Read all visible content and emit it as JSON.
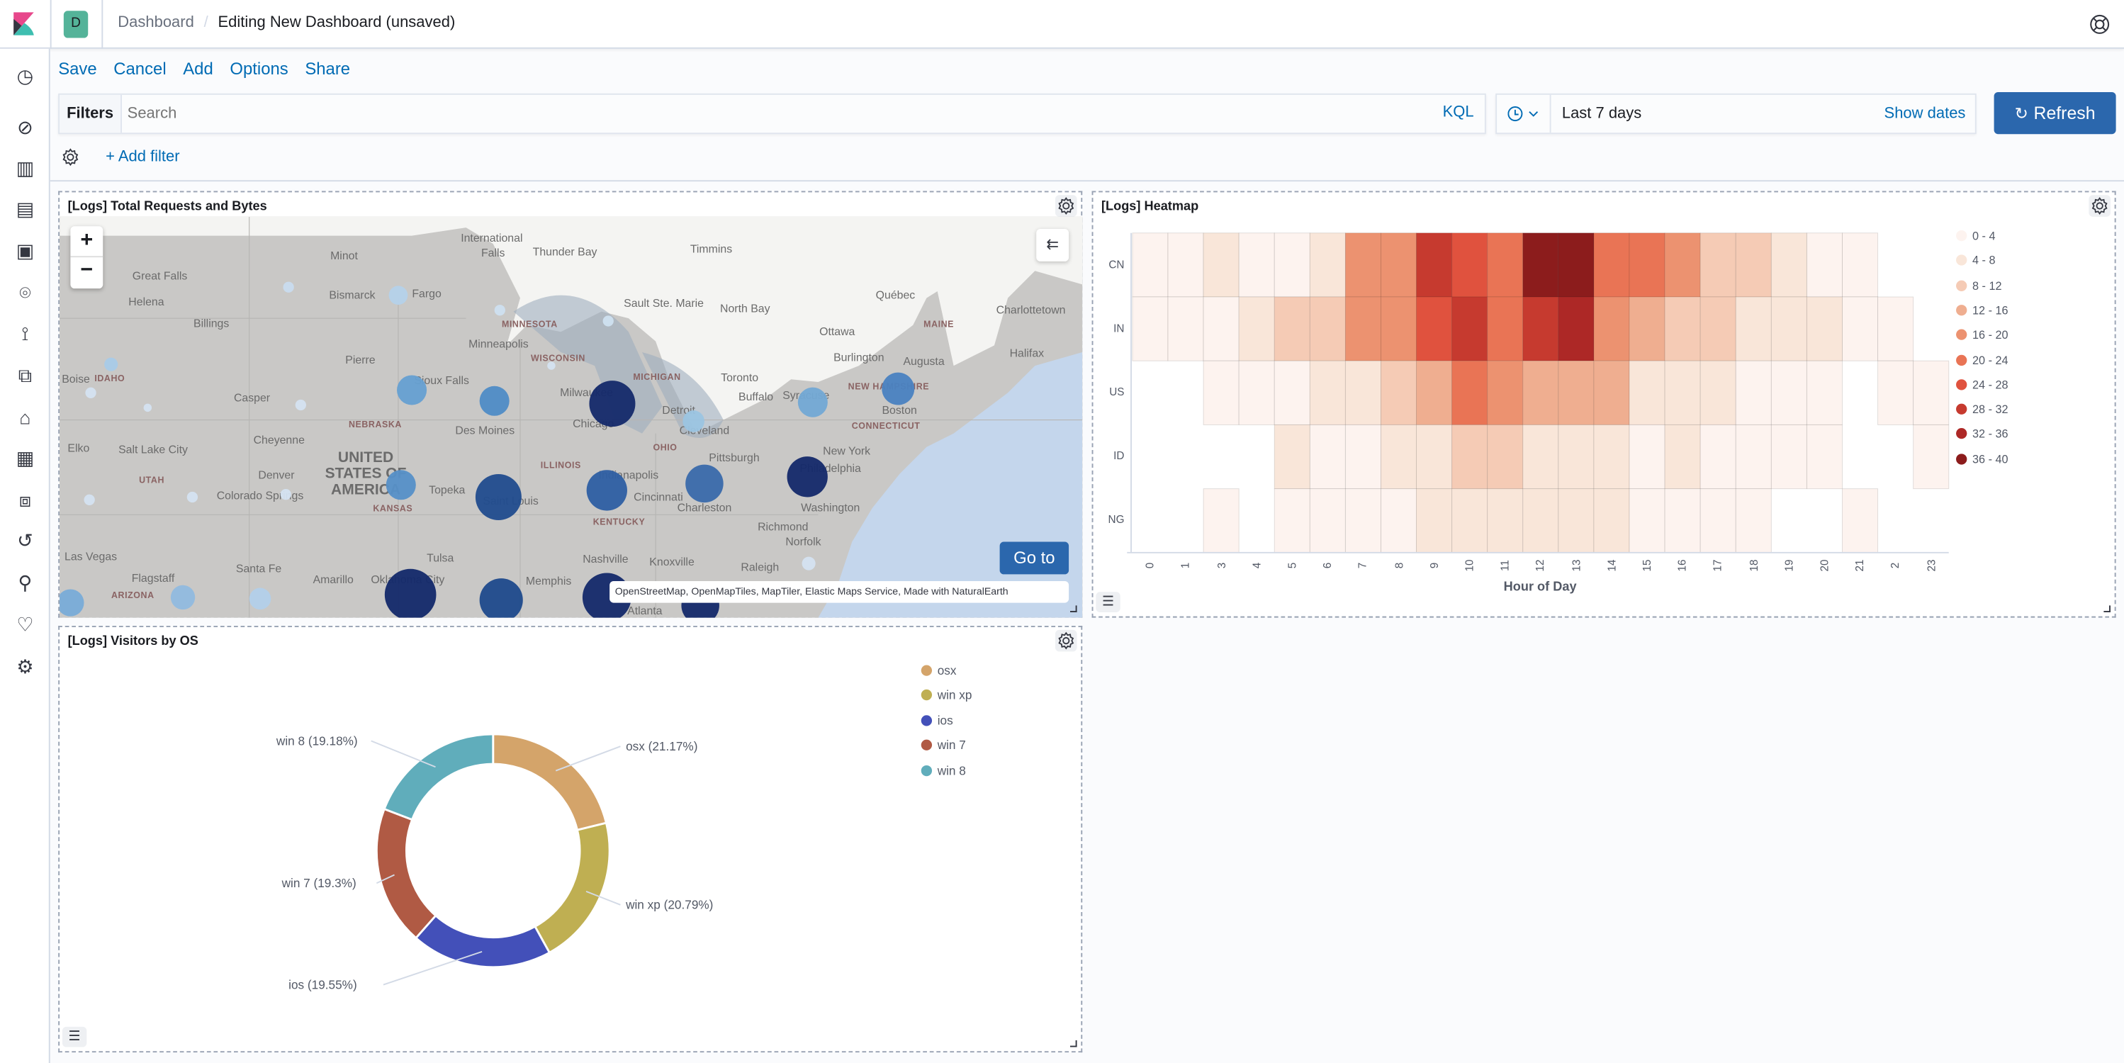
{
  "header": {
    "space_initial": "D",
    "breadcrumbs": [
      "Dashboard",
      "Editing New Dashboard (unsaved)"
    ]
  },
  "top_nav": {
    "items": [
      "Save",
      "Cancel",
      "Add",
      "Options",
      "Share"
    ]
  },
  "query_bar": {
    "filters_label": "Filters",
    "search_placeholder": "Search",
    "language": "KQL",
    "time_range": "Last 7 days",
    "show_dates": "Show dates",
    "refresh": "Refresh",
    "add_filter": "+ Add filter"
  },
  "sidebar": {
    "icons": [
      "clock-icon",
      "discover-icon",
      "visualize-icon",
      "dashboard-icon",
      "canvas-icon",
      "maps-icon",
      "machine-learning-icon",
      "graph-icon",
      "infrastructure-icon",
      "logs-icon",
      "apm-icon",
      "uptime-icon",
      "dev-tools-icon",
      "monitoring-icon",
      "management-icon"
    ]
  },
  "colors": {
    "accent": "#006bb4",
    "primary_button": "#2b67ad",
    "space_avatar": "#54b399"
  },
  "map_panel": {
    "title": "[Logs] Total Requests and Bytes",
    "zoom_in": "+",
    "zoom_out": "−",
    "goto": "Go to",
    "attribution": "OpenStreetMap, OpenMapTiles, MapTiler, Elastic Maps Service, Made with NaturalEarth",
    "cities": [
      "Minot",
      "Great Falls",
      "Helena",
      "Billings",
      "Bismarck",
      "Fargo",
      "International",
      "Falls",
      "Thunder Bay",
      "Timmins",
      "Sault Ste. Marie",
      "North Bay",
      "Québec",
      "Charlottetown",
      "Ottawa",
      "Halifax",
      "Burlington",
      "Augusta",
      "Minneapolis",
      "Pierre",
      "Casper",
      "Des Moines",
      "Cheyenne",
      "Elko",
      "Salt Lake City",
      "Denver",
      "Topeka",
      "Saint Louis",
      "Pittsburgh",
      "Cleveland",
      "Toronto",
      "Buffalo",
      "Boston",
      "New York",
      "Richmond",
      "Norfolk",
      "Las Vegas",
      "Santa Fe",
      "Amarillo",
      "Tulsa",
      "Memphis",
      "Nashville",
      "Knoxville",
      "Raleigh",
      "Flagstaff",
      "Charleston",
      "Cincinnati",
      "Oklahoma City",
      "Atlanta",
      "Chicago",
      "Milwaukee",
      "Detroit",
      "Colorado Springs",
      "Sioux Falls",
      "Syracuse",
      "Indianapolis",
      "Philadelphia",
      "Washington",
      "Boise"
    ],
    "states": [
      "MINNESOTA",
      "WISCONSIN",
      "IDAHO",
      "NEBRASKA",
      "UTAH",
      "KANSAS",
      "ILLINOIS",
      "MICHIGAN",
      "OHIO",
      "KENTUCKY",
      "CONNECTICUT",
      "MAINE",
      "ARIZONA",
      "NEW HAMPSHIRE"
    ],
    "country": "UNITED STATES OF AMERICA"
  },
  "chart_data": [
    {
      "type": "heatmap",
      "title": "[Logs] Heatmap",
      "xlabel": "Hour of Day",
      "ylabel": "",
      "x": [
        "0",
        "1",
        "3",
        "4",
        "5",
        "6",
        "7",
        "8",
        "9",
        "10",
        "11",
        "12",
        "13",
        "14",
        "15",
        "16",
        "17",
        "18",
        "19",
        "20",
        "21",
        "2",
        "23"
      ],
      "y": [
        "CN",
        "IN",
        "US",
        "ID",
        "NG"
      ],
      "values": [
        [
          2,
          2,
          6,
          2,
          2,
          6,
          18,
          18,
          30,
          26,
          22,
          38,
          38,
          22,
          22,
          18,
          10,
          10,
          6,
          2,
          2,
          null,
          null
        ],
        [
          2,
          2,
          2,
          6,
          10,
          10,
          18,
          18,
          26,
          30,
          22,
          30,
          34,
          18,
          14,
          10,
          10,
          6,
          6,
          6,
          2,
          2,
          null
        ],
        [
          null,
          null,
          2,
          2,
          2,
          6,
          6,
          10,
          14,
          22,
          18,
          14,
          14,
          14,
          6,
          6,
          6,
          2,
          2,
          2,
          null,
          2,
          2
        ],
        [
          null,
          null,
          null,
          null,
          6,
          2,
          2,
          6,
          6,
          10,
          10,
          6,
          6,
          6,
          2,
          6,
          2,
          2,
          2,
          2,
          null,
          null,
          2
        ],
        [
          null,
          null,
          2,
          null,
          2,
          2,
          2,
          2,
          6,
          6,
          6,
          6,
          6,
          6,
          2,
          2,
          2,
          2,
          null,
          null,
          2,
          null,
          null
        ]
      ],
      "legend": {
        "position": "right",
        "ranges": [
          "0 - 4",
          "4 - 8",
          "8 - 12",
          "12 - 16",
          "16 - 20",
          "20 - 24",
          "24 - 28",
          "28 - 32",
          "32 - 36",
          "36 - 40"
        ],
        "colors": [
          "#fdf3ef",
          "#f9e6d9",
          "#f5cbb5",
          "#efae90",
          "#ec9270",
          "#e97455",
          "#e0523e",
          "#c63a2f",
          "#ad2826",
          "#8c1c1c"
        ]
      }
    },
    {
      "type": "pie",
      "title": "[Logs] Visitors by OS",
      "donut": true,
      "categories": [
        "osx",
        "win xp",
        "ios",
        "win 7",
        "win 8"
      ],
      "values": [
        21.17,
        20.79,
        19.55,
        19.3,
        19.18
      ],
      "labels": [
        "osx (21.17%)",
        "win xp (20.79%)",
        "ios (19.55%)",
        "win 7 (19.3%)",
        "win 8 (19.18%)"
      ],
      "colors": [
        "#d4a46a",
        "#bfaf52",
        "#4350b9",
        "#b05a44",
        "#60adbb"
      ],
      "legend": {
        "position": "top-right"
      }
    }
  ]
}
